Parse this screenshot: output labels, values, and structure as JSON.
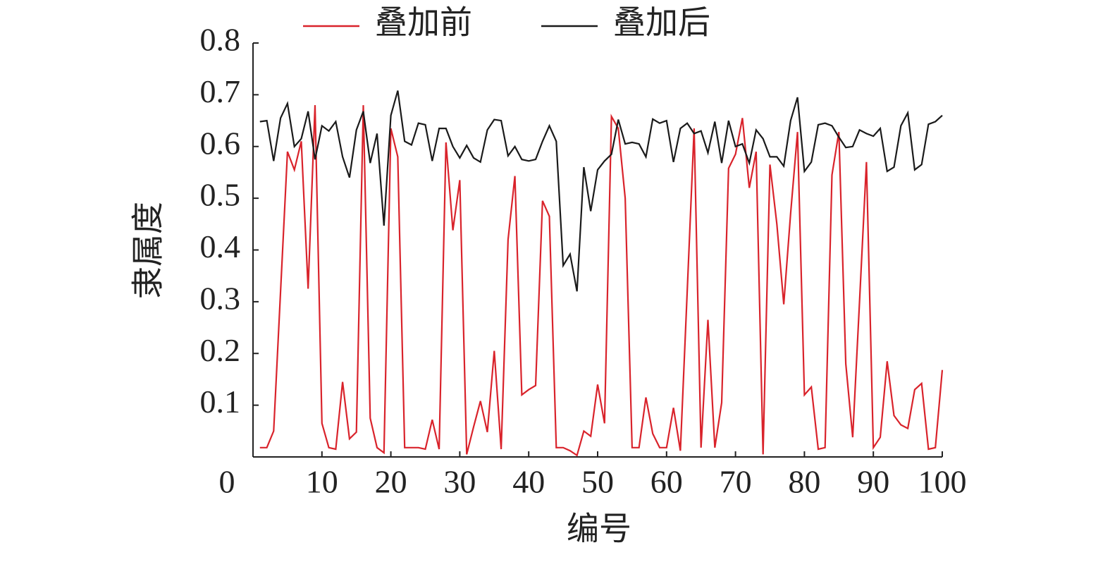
{
  "chart_data": {
    "type": "line",
    "xlabel": "编号",
    "ylabel": "隶属度",
    "x": [
      1,
      2,
      3,
      4,
      5,
      6,
      7,
      8,
      9,
      10,
      11,
      12,
      13,
      14,
      15,
      16,
      17,
      18,
      19,
      20,
      21,
      22,
      23,
      24,
      25,
      26,
      27,
      28,
      29,
      30,
      31,
      32,
      33,
      34,
      35,
      36,
      37,
      38,
      39,
      40,
      41,
      42,
      43,
      44,
      45,
      46,
      47,
      48,
      49,
      50,
      51,
      52,
      53,
      54,
      55,
      56,
      57,
      58,
      59,
      60,
      61,
      62,
      63,
      64,
      65,
      66,
      67,
      68,
      69,
      70,
      71,
      72,
      73,
      74,
      75,
      76,
      77,
      78,
      79,
      80,
      81,
      82,
      83,
      84,
      85,
      86,
      87,
      88,
      89,
      90,
      91,
      92,
      93,
      94,
      95,
      96,
      97,
      98,
      99,
      100
    ],
    "series": [
      {
        "name": "叠加前",
        "color": "#d9232b",
        "values": [
          0.018,
          0.018,
          0.05,
          0.32,
          0.59,
          0.555,
          0.61,
          0.325,
          0.68,
          0.065,
          0.018,
          0.015,
          0.145,
          0.035,
          0.048,
          0.68,
          0.075,
          0.018,
          0.008,
          0.635,
          0.58,
          0.018,
          0.018,
          0.018,
          0.015,
          0.072,
          0.015,
          0.608,
          0.438,
          0.535,
          0.005,
          0.058,
          0.108,
          0.048,
          0.205,
          0.015,
          0.42,
          0.543,
          0.12,
          0.13,
          0.138,
          0.495,
          0.465,
          0.018,
          0.018,
          0.012,
          0.003,
          0.05,
          0.04,
          0.14,
          0.065,
          0.658,
          0.635,
          0.5,
          0.018,
          0.018,
          0.115,
          0.045,
          0.018,
          0.018,
          0.095,
          0.012,
          0.32,
          0.635,
          0.018,
          0.265,
          0.018,
          0.105,
          0.558,
          0.585,
          0.655,
          0.52,
          0.59,
          0.005,
          0.565,
          0.45,
          0.295,
          0.47,
          0.628,
          0.12,
          0.135,
          0.015,
          0.018,
          0.545,
          0.628,
          0.18,
          0.038,
          0.3,
          0.57,
          0.018,
          0.038,
          0.185,
          0.08,
          0.062,
          0.055,
          0.13,
          0.142,
          0.015,
          0.018,
          0.168
        ]
      },
      {
        "name": "叠加后",
        "color": "#1a1a1a",
        "values": [
          0.648,
          0.65,
          0.572,
          0.655,
          0.683,
          0.6,
          0.615,
          0.668,
          0.575,
          0.64,
          0.63,
          0.648,
          0.58,
          0.54,
          0.632,
          0.668,
          0.568,
          0.625,
          0.447,
          0.66,
          0.708,
          0.61,
          0.603,
          0.645,
          0.642,
          0.572,
          0.635,
          0.635,
          0.6,
          0.578,
          0.602,
          0.578,
          0.57,
          0.632,
          0.652,
          0.65,
          0.582,
          0.6,
          0.575,
          0.572,
          0.575,
          0.61,
          0.64,
          0.61,
          0.37,
          0.392,
          0.32,
          0.56,
          0.475,
          0.555,
          0.572,
          0.585,
          0.652,
          0.605,
          0.608,
          0.605,
          0.58,
          0.653,
          0.645,
          0.65,
          0.57,
          0.635,
          0.645,
          0.625,
          0.63,
          0.588,
          0.648,
          0.568,
          0.65,
          0.6,
          0.605,
          0.568,
          0.632,
          0.615,
          0.58,
          0.58,
          0.562,
          0.65,
          0.695,
          0.552,
          0.57,
          0.642,
          0.645,
          0.64,
          0.618,
          0.598,
          0.6,
          0.632,
          0.625,
          0.62,
          0.635,
          0.552,
          0.56,
          0.64,
          0.665,
          0.555,
          0.565,
          0.643,
          0.648,
          0.66
        ]
      }
    ],
    "xlim": [
      0,
      100
    ],
    "xticks": [
      0,
      10,
      20,
      30,
      40,
      50,
      60,
      70,
      80,
      90,
      100
    ],
    "ylim": [
      0,
      0.8
    ],
    "yticks": [
      0.1,
      0.2,
      0.3,
      0.4,
      0.5,
      0.6,
      0.7,
      0.8
    ],
    "legend": "top"
  }
}
